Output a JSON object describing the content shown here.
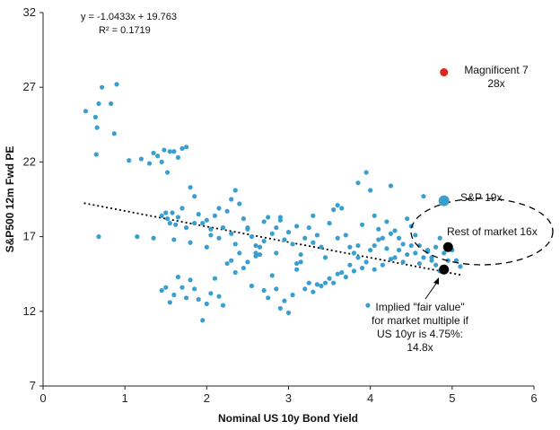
{
  "chart_data": {
    "type": "scatter",
    "title": "",
    "xlabel": "Nominal US 10y Bond Yield",
    "ylabel": "S&P500 12m Fwd PE",
    "xlim": [
      0,
      6
    ],
    "ylim": [
      7,
      32
    ],
    "xticks": [
      "0",
      "1",
      "2",
      "3",
      "4",
      "5",
      "6"
    ],
    "yticks": [
      "7",
      "12",
      "17",
      "22",
      "27",
      "32"
    ],
    "grid": false,
    "colors": {
      "points": "#3a9fcf",
      "highlight": "#e0231c",
      "special": "#000000",
      "trend": "#000000"
    },
    "trendline": {
      "equation": "y = -1.0433x + 19.763",
      "r2": "R² = 0.1719",
      "slope": -1.0433,
      "intercept": 19.763,
      "x_range": [
        0.5,
        5.1
      ]
    },
    "points": [
      [
        0.52,
        25.4
      ],
      [
        0.64,
        25.0
      ],
      [
        0.66,
        24.3
      ],
      [
        0.68,
        25.9
      ],
      [
        0.72,
        27.0
      ],
      [
        0.83,
        25.9
      ],
      [
        0.9,
        27.2
      ],
      [
        0.87,
        23.9
      ],
      [
        0.65,
        22.5
      ],
      [
        0.68,
        17.0
      ],
      [
        1.05,
        22.1
      ],
      [
        1.15,
        17.0
      ],
      [
        1.2,
        22.2
      ],
      [
        1.3,
        21.9
      ],
      [
        1.35,
        22.6
      ],
      [
        1.4,
        22.4
      ],
      [
        1.45,
        22.0
      ],
      [
        1.48,
        22.8
      ],
      [
        1.52,
        21.3
      ],
      [
        1.55,
        22.7
      ],
      [
        1.6,
        22.7
      ],
      [
        1.65,
        22.3
      ],
      [
        1.7,
        22.9
      ],
      [
        1.75,
        23.0
      ],
      [
        1.45,
        18.4
      ],
      [
        1.5,
        18.6
      ],
      [
        1.52,
        18.2
      ],
      [
        1.55,
        17.9
      ],
      [
        1.58,
        18.6
      ],
      [
        1.62,
        17.8
      ],
      [
        1.65,
        18.3
      ],
      [
        1.7,
        18.9
      ],
      [
        1.75,
        17.6
      ],
      [
        1.8,
        20.3
      ],
      [
        1.85,
        19.7
      ],
      [
        1.9,
        18.5
      ],
      [
        1.95,
        17.9
      ],
      [
        2.0,
        18.1
      ],
      [
        2.05,
        17.5
      ],
      [
        2.1,
        18.4
      ],
      [
        2.15,
        18.9
      ],
      [
        2.2,
        17.6
      ],
      [
        2.25,
        18.7
      ],
      [
        2.3,
        19.5
      ],
      [
        2.35,
        20.1
      ],
      [
        2.4,
        19.2
      ],
      [
        2.45,
        18.2
      ],
      [
        2.5,
        17.5
      ],
      [
        2.55,
        17.0
      ],
      [
        2.6,
        16.4
      ],
      [
        2.65,
        15.8
      ],
      [
        2.7,
        16.7
      ],
      [
        2.75,
        18.3
      ],
      [
        2.8,
        17.2
      ],
      [
        2.85,
        17.6
      ],
      [
        2.9,
        18.1
      ],
      [
        2.95,
        16.8
      ],
      [
        3.0,
        17.3
      ],
      [
        3.05,
        16.5
      ],
      [
        3.1,
        15.2
      ],
      [
        3.15,
        15.8
      ],
      [
        3.2,
        16.9
      ],
      [
        3.25,
        17.6
      ],
      [
        3.3,
        18.4
      ],
      [
        3.35,
        17.1
      ],
      [
        3.4,
        16.3
      ],
      [
        3.45,
        15.6
      ],
      [
        3.5,
        17.9
      ],
      [
        3.55,
        18.8
      ],
      [
        3.6,
        19.1
      ],
      [
        3.65,
        18.9
      ],
      [
        3.7,
        17.1
      ],
      [
        3.75,
        16.3
      ],
      [
        3.8,
        15.9
      ],
      [
        3.85,
        20.6
      ],
      [
        3.9,
        17.8
      ],
      [
        3.95,
        21.3
      ],
      [
        4.0,
        20.1
      ],
      [
        4.05,
        18.4
      ],
      [
        4.1,
        17.5
      ],
      [
        4.15,
        16.9
      ],
      [
        4.2,
        18.0
      ],
      [
        4.25,
        20.4
      ],
      [
        4.3,
        17.4
      ],
      [
        4.35,
        16.1
      ],
      [
        4.4,
        15.3
      ],
      [
        4.45,
        18.2
      ],
      [
        4.5,
        17.7
      ],
      [
        4.55,
        17.1
      ],
      [
        4.6,
        16.4
      ],
      [
        4.65,
        19.7
      ],
      [
        4.7,
        16.0
      ],
      [
        4.75,
        15.6
      ],
      [
        4.8,
        16.3
      ],
      [
        4.85,
        16.9
      ],
      [
        4.9,
        15.9
      ],
      [
        4.95,
        15.4
      ],
      [
        5.0,
        16.1
      ],
      [
        5.05,
        15.4
      ],
      [
        5.1,
        15.0
      ],
      [
        1.45,
        13.4
      ],
      [
        1.5,
        13.6
      ],
      [
        1.55,
        12.6
      ],
      [
        1.6,
        13.1
      ],
      [
        1.65,
        14.3
      ],
      [
        1.7,
        13.6
      ],
      [
        1.75,
        12.9
      ],
      [
        1.8,
        14.1
      ],
      [
        1.85,
        13.5
      ],
      [
        1.9,
        12.8
      ],
      [
        1.95,
        11.4
      ],
      [
        2.0,
        12.5
      ],
      [
        2.05,
        13.2
      ],
      [
        2.1,
        14.2
      ],
      [
        2.15,
        13.0
      ],
      [
        2.2,
        12.4
      ],
      [
        2.25,
        15.2
      ],
      [
        2.3,
        15.4
      ],
      [
        2.35,
        14.6
      ],
      [
        2.4,
        15.9
      ],
      [
        2.45,
        14.9
      ],
      [
        2.5,
        15.3
      ],
      [
        2.55,
        13.7
      ],
      [
        2.6,
        15.9
      ],
      [
        2.65,
        16.3
      ],
      [
        2.7,
        13.4
      ],
      [
        2.75,
        12.9
      ],
      [
        2.8,
        14.4
      ],
      [
        2.85,
        13.5
      ],
      [
        2.9,
        12.2
      ],
      [
        2.95,
        12.7
      ],
      [
        3.0,
        11.9
      ],
      [
        3.05,
        13.1
      ],
      [
        3.1,
        14.8
      ],
      [
        3.15,
        15.3
      ],
      [
        3.2,
        13.5
      ],
      [
        3.25,
        13.9
      ],
      [
        3.3,
        13.3
      ],
      [
        3.35,
        13.8
      ],
      [
        3.4,
        13.7
      ],
      [
        3.45,
        13.9
      ],
      [
        3.5,
        14.2
      ],
      [
        3.55,
        13.9
      ],
      [
        3.6,
        14.5
      ],
      [
        3.65,
        14.6
      ],
      [
        3.7,
        14.3
      ],
      [
        3.75,
        15.1
      ],
      [
        3.8,
        14.7
      ],
      [
        3.85,
        15.6
      ],
      [
        3.9,
        14.9
      ],
      [
        3.95,
        15.3
      ],
      [
        4.0,
        16.1
      ],
      [
        4.05,
        14.8
      ],
      [
        4.1,
        16.8
      ],
      [
        4.15,
        15.1
      ],
      [
        4.2,
        16.2
      ],
      [
        4.25,
        15.5
      ],
      [
        4.3,
        15.6
      ],
      [
        4.35,
        16.9
      ],
      [
        4.4,
        16.5
      ],
      [
        4.45,
        15.8
      ],
      [
        4.5,
        16.4
      ],
      [
        4.55,
        15.9
      ],
      [
        4.6,
        15.2
      ],
      [
        4.65,
        15.6
      ],
      [
        4.7,
        16.1
      ],
      [
        4.75,
        15.4
      ],
      [
        4.8,
        15.1
      ],
      [
        4.85,
        14.7
      ],
      [
        3.97,
        12.4
      ],
      [
        1.85,
        17.9
      ],
      [
        2.0,
        16.3
      ],
      [
        2.15,
        16.9
      ],
      [
        2.3,
        17.2
      ],
      [
        2.5,
        17.6
      ],
      [
        2.7,
        18.0
      ],
      [
        2.9,
        18.3
      ],
      [
        3.1,
        17.7
      ],
      [
        3.3,
        16.6
      ],
      [
        3.6,
        16.9
      ],
      [
        3.85,
        16.4
      ],
      [
        4.05,
        16.4
      ],
      [
        4.25,
        17.2
      ],
      [
        1.35,
        16.9
      ],
      [
        1.6,
        16.8
      ],
      [
        1.8,
        16.6
      ],
      [
        2.05,
        17.1
      ],
      [
        2.35,
        16.5
      ],
      [
        2.6,
        15.7
      ],
      [
        2.85,
        15.9
      ]
    ],
    "highlights": [
      {
        "x": 4.9,
        "y": 28.0,
        "label_lines": [
          "Magnificent 7",
          "28x"
        ],
        "color": "#e0231c",
        "r": 4.5
      },
      {
        "x": 4.9,
        "y": 19.4,
        "label_lines": [
          "S&P 19x"
        ],
        "color": "#3a9fcf",
        "r": 6
      },
      {
        "x": 4.95,
        "y": 16.3,
        "label_lines": [
          "Rest of market 16x"
        ],
        "color": "#000000",
        "r": 5.5
      },
      {
        "x": 4.9,
        "y": 14.8,
        "label_lines": [
          "Implied \"fair value\"",
          "for market multiple if",
          "US 10yr is 4.75%:",
          "14.8x"
        ],
        "color": "#000000",
        "r": 5.5
      }
    ]
  }
}
